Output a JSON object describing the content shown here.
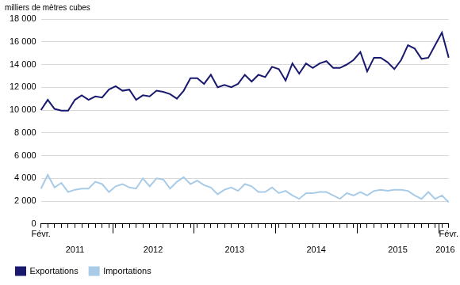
{
  "chart_data": {
    "type": "line",
    "y_label": "milliers de mètres cubes",
    "categories": [
      "Févr.",
      null,
      null,
      null,
      null,
      null,
      null,
      null,
      null,
      null,
      null,
      null,
      null,
      null,
      null,
      null,
      null,
      null,
      null,
      null,
      null,
      null,
      null,
      null,
      null,
      null,
      null,
      null,
      null,
      null,
      null,
      null,
      null,
      null,
      null,
      null,
      null,
      null,
      null,
      null,
      null,
      null,
      null,
      null,
      null,
      null,
      null,
      null,
      null,
      null,
      null,
      null,
      null,
      null,
      null,
      null,
      null,
      null,
      null,
      null,
      "Févr."
    ],
    "x_groups": [
      {
        "label": "2011",
        "start": 0,
        "end": 10
      },
      {
        "label": "2012",
        "start": 11,
        "end": 22
      },
      {
        "label": "2013",
        "start": 23,
        "end": 34
      },
      {
        "label": "2014",
        "start": 35,
        "end": 46
      },
      {
        "label": "2015",
        "start": 47,
        "end": 58
      },
      {
        "label": "2016",
        "start": 59,
        "end": 60
      }
    ],
    "series": [
      {
        "name": "Exportations",
        "color": "#191970",
        "values": [
          10000,
          10900,
          10100,
          9950,
          9950,
          10900,
          11300,
          10900,
          11200,
          11100,
          11800,
          12100,
          11700,
          11800,
          10900,
          11300,
          11200,
          11700,
          11600,
          11400,
          11000,
          11700,
          12800,
          12800,
          12300,
          13100,
          12000,
          12200,
          12000,
          12300,
          13100,
          12500,
          13100,
          12900,
          13800,
          13600,
          12600,
          14100,
          13200,
          14100,
          13700,
          14100,
          14300,
          13700,
          13700,
          14000,
          14400,
          15100,
          13400,
          14600,
          14600,
          14200,
          13600,
          14400,
          15700,
          15400,
          14500,
          14600,
          15700,
          16800,
          14600
        ]
      },
      {
        "name": "Importations",
        "color": "#a8cbe8",
        "values": [
          3100,
          4300,
          3200,
          3600,
          2800,
          3000,
          3100,
          3100,
          3700,
          3500,
          2800,
          3300,
          3500,
          3200,
          3100,
          4000,
          3300,
          4000,
          3900,
          3100,
          3700,
          4100,
          3500,
          3800,
          3400,
          3200,
          2600,
          3000,
          3200,
          2900,
          3500,
          3300,
          2800,
          2800,
          3200,
          2700,
          2900,
          2500,
          2200,
          2700,
          2700,
          2800,
          2800,
          2500,
          2200,
          2700,
          2500,
          2800,
          2500,
          2900,
          3000,
          2900,
          3000,
          3000,
          2900,
          2500,
          2200,
          2800,
          2200,
          2500,
          1900
        ]
      }
    ],
    "ylim": [
      0,
      18000
    ],
    "yticks": [
      {
        "value": 0,
        "label": "0"
      },
      {
        "value": 2000,
        "label": "2 000"
      },
      {
        "value": 4000,
        "label": "4 000"
      },
      {
        "value": 6000,
        "label": "6 000"
      },
      {
        "value": 8000,
        "label": "8 000"
      },
      {
        "value": 10000,
        "label": "10 000"
      },
      {
        "value": 12000,
        "label": "12 000"
      },
      {
        "value": 14000,
        "label": "14 000"
      },
      {
        "value": 16000,
        "label": "16 000"
      },
      {
        "value": 18000,
        "label": "18 000"
      }
    ],
    "grid": true,
    "legend": "bottom"
  }
}
